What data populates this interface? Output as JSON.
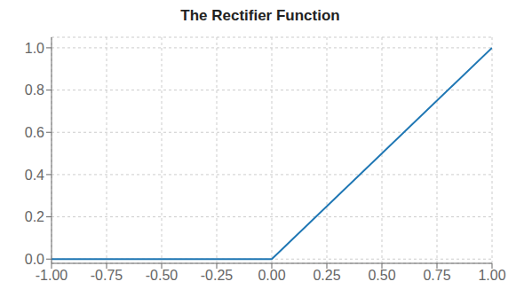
{
  "chart_data": {
    "type": "line",
    "title": "The Rectifier Function",
    "x": [
      -1.0,
      0.0,
      1.0
    ],
    "values": [
      0.0,
      0.0,
      1.0
    ],
    "color": "#1f77b4",
    "xlim": [
      -1.0,
      1.0
    ],
    "ylim": [
      -0.02,
      1.05
    ],
    "xticks": [
      {
        "value": -1.0,
        "label": "-1.00"
      },
      -0.75,
      {
        "value": -0.5,
        "label": "-0.50"
      },
      -0.25,
      {
        "value": 0.0,
        "label": "0.00"
      },
      0.25,
      {
        "value": 0.5,
        "label": "0.50"
      },
      0.75,
      {
        "value": 1.0,
        "label": "1.00"
      }
    ],
    "yticks": [
      {
        "value": 0.0,
        "label": "0.0"
      },
      0.2,
      0.4,
      0.6,
      0.8,
      {
        "value": 1.0,
        "label": "1.0"
      }
    ],
    "grid": true
  }
}
